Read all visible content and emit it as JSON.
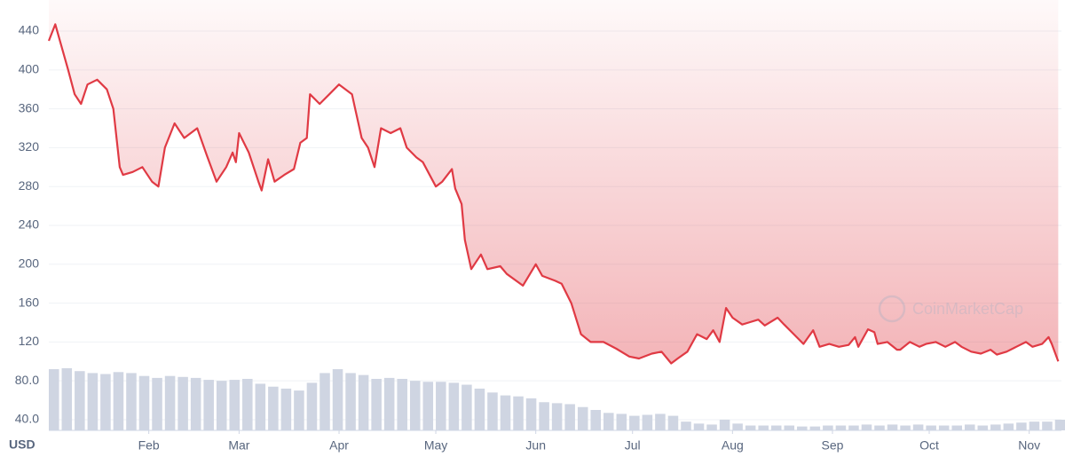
{
  "chart_data": {
    "type": "line",
    "axis_unit": "USD",
    "watermark": "CoinMarketCap",
    "color": "#e03a44",
    "grid": true,
    "xlim": [
      0,
      314
    ],
    "ylim": [
      29,
      472
    ],
    "xticks": [
      {
        "value": 31,
        "label": "Feb"
      },
      {
        "value": 59,
        "label": "Mar"
      },
      {
        "value": 90,
        "label": "Apr"
      },
      {
        "value": 120,
        "label": "May"
      },
      {
        "value": 151,
        "label": "Jun"
      },
      {
        "value": 181,
        "label": "Jul"
      },
      {
        "value": 212,
        "label": "Aug"
      },
      {
        "value": 243,
        "label": "Sep"
      },
      {
        "value": 273,
        "label": "Oct"
      },
      {
        "value": 304,
        "label": "Nov"
      }
    ],
    "yticks": [
      {
        "value": 40,
        "label": "40.0"
      },
      {
        "value": 80,
        "label": "80.0"
      },
      120,
      160,
      200,
      240,
      280,
      320,
      360,
      400,
      440
    ],
    "x": [
      0,
      2,
      6,
      8,
      10,
      12,
      15,
      18,
      20,
      22,
      23,
      26,
      29,
      32,
      34,
      36,
      39,
      42,
      46,
      49,
      52,
      55,
      57,
      58,
      59,
      62,
      65,
      66,
      68,
      70,
      73,
      76,
      78,
      80,
      81,
      84,
      87,
      90,
      94,
      95,
      97,
      99,
      101,
      103,
      106,
      109,
      111,
      114,
      116,
      120,
      122,
      125,
      126,
      128,
      129,
      131,
      134,
      136,
      140,
      142,
      147,
      151,
      153,
      157,
      159,
      162,
      165,
      168,
      172,
      176,
      180,
      183,
      187,
      190,
      193,
      195,
      198,
      201,
      204,
      206,
      208,
      210,
      212,
      215,
      217,
      220,
      222,
      226,
      228,
      231,
      234,
      237,
      239,
      242,
      245,
      248,
      250,
      251,
      254,
      256,
      257,
      260,
      263,
      264,
      267,
      270,
      272,
      275,
      278,
      281,
      283,
      286,
      289,
      292,
      294,
      297,
      300,
      303,
      305,
      308,
      310,
      311,
      313
    ],
    "values": [
      430,
      447,
      400,
      375,
      365,
      385,
      390,
      380,
      360,
      300,
      292,
      295,
      300,
      285,
      280,
      320,
      345,
      330,
      340,
      312,
      285,
      300,
      315,
      305,
      335,
      315,
      285,
      276,
      308,
      285,
      292,
      298,
      325,
      330,
      375,
      365,
      375,
      385,
      375,
      360,
      330,
      320,
      300,
      340,
      335,
      340,
      320,
      310,
      305,
      280,
      285,
      298,
      278,
      262,
      225,
      195,
      210,
      195,
      198,
      190,
      178,
      200,
      188,
      183,
      180,
      160,
      128,
      120,
      120,
      113,
      105,
      103,
      108,
      110,
      98,
      103,
      110,
      128,
      123,
      132,
      120,
      155,
      145,
      138,
      140,
      143,
      137,
      145,
      138,
      128,
      118,
      132,
      115,
      118,
      115,
      117,
      125,
      115,
      133,
      130,
      118,
      120,
      112,
      112,
      120,
      115,
      118,
      120,
      115,
      120,
      115,
      110,
      108,
      112,
      107,
      110,
      115,
      120,
      115,
      118,
      125,
      118,
      100
    ],
    "volume": {
      "type": "bar",
      "color": "#cfd5e2",
      "x": [
        0,
        4,
        8,
        12,
        16,
        20,
        24,
        28,
        32,
        36,
        40,
        44,
        48,
        52,
        56,
        60,
        64,
        68,
        72,
        76,
        80,
        84,
        88,
        92,
        96,
        100,
        104,
        108,
        112,
        116,
        120,
        124,
        128,
        132,
        136,
        140,
        144,
        148,
        152,
        156,
        160,
        164,
        168,
        172,
        176,
        180,
        184,
        188,
        192,
        196,
        200,
        204,
        208,
        212,
        216,
        220,
        224,
        228,
        232,
        236,
        240,
        244,
        248,
        252,
        256,
        260,
        264,
        268,
        272,
        276,
        280,
        284,
        288,
        292,
        296,
        300,
        304,
        308,
        312
      ],
      "values": [
        92,
        93,
        90,
        88,
        87,
        89,
        88,
        85,
        83,
        85,
        84,
        83,
        81,
        80,
        81,
        82,
        77,
        74,
        72,
        70,
        78,
        88,
        92,
        88,
        86,
        82,
        83,
        82,
        80,
        79,
        79,
        78,
        76,
        72,
        68,
        65,
        64,
        62,
        58,
        57,
        56,
        53,
        50,
        47,
        46,
        44,
        45,
        46,
        44,
        38,
        36,
        35,
        40,
        36,
        34,
        34,
        34,
        34,
        33,
        33,
        34,
        34,
        34,
        35,
        34,
        35,
        34,
        35,
        34,
        34,
        34,
        35,
        34,
        35,
        36,
        37,
        38,
        38,
        40
      ]
    }
  }
}
